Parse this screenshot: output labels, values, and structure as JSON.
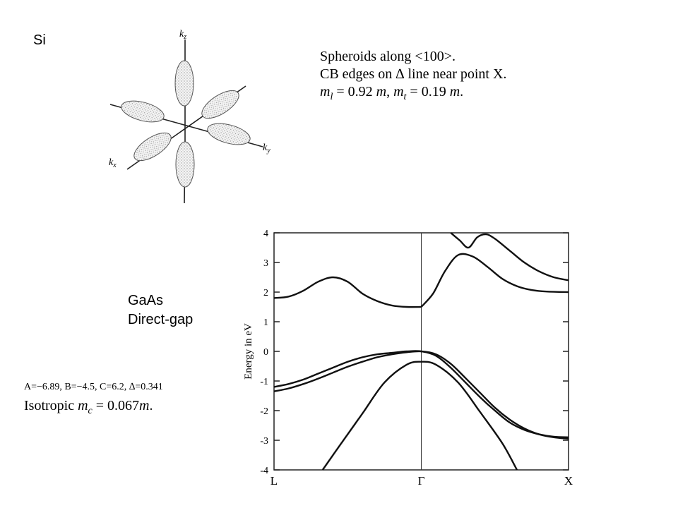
{
  "si": {
    "label": "Si",
    "line1": "Spheroids along <100>.",
    "line2": "CB edges on ∆ line near point X.",
    "line3": {
      "m": "m",
      "sub_l": "l",
      "eq1": " = 0.92 ",
      "m2": "m",
      "sep": ",  ",
      "m3": "m",
      "sub_t": "t",
      "eq2": " = 0.19 ",
      "m4": "m",
      "end": "."
    },
    "axes": {
      "kz": "k",
      "kz_sub": "z",
      "ky": "k",
      "ky_sub": "y",
      "kx": "k",
      "kx_sub": "x"
    }
  },
  "gaas": {
    "label1": "GaAs",
    "label2": "Direct-gap",
    "params": "A=−6.89,  B=−4.5, C=6.2,  ∆=0.341",
    "iso": {
      "pre": "Isotropic ",
      "m": "m",
      "sub": "c",
      "eq": " = 0.067",
      "m2": "m",
      "end": "."
    }
  },
  "chart_data": {
    "type": "line",
    "title": "",
    "xlabel": "",
    "ylabel": "Energy in eV",
    "x_ticks": [
      "L",
      "Γ",
      "X"
    ],
    "ylim": [
      -4,
      4
    ],
    "y_ticks": [
      "4",
      "3",
      "2",
      "1",
      "0",
      "-1",
      "-2",
      "-3",
      "-4"
    ],
    "grid": false,
    "legend": "none",
    "series": [
      {
        "x": [
          0,
          0.1,
          0.2,
          0.3,
          0.4,
          0.5,
          0.6,
          0.7,
          0.8,
          0.9,
          1.0
        ],
        "y": [
          1.8,
          1.85,
          2.05,
          2.35,
          2.5,
          2.35,
          1.95,
          1.7,
          1.55,
          1.5,
          1.5
        ]
      },
      {
        "x": [
          1.0,
          1.08,
          1.16,
          1.25,
          1.35,
          1.45,
          1.55,
          1.65,
          1.75,
          1.85,
          2.0
        ],
        "y": [
          1.5,
          1.95,
          2.7,
          3.25,
          3.2,
          2.85,
          2.45,
          2.2,
          2.07,
          2.02,
          2.0
        ]
      },
      {
        "x": [
          1.2,
          1.26,
          1.32,
          1.38,
          1.44,
          1.5,
          1.6,
          1.7,
          1.8,
          1.9,
          2.0
        ],
        "y": [
          4.0,
          3.75,
          3.5,
          3.85,
          3.95,
          3.8,
          3.4,
          3.0,
          2.7,
          2.5,
          2.4
        ]
      },
      {
        "x": [
          0,
          0.1,
          0.2,
          0.3,
          0.4,
          0.5,
          0.6,
          0.7,
          0.8,
          0.9,
          1.0,
          1.1,
          1.2,
          1.3,
          1.4,
          1.5,
          1.6,
          1.7,
          1.8,
          1.9,
          2.0
        ],
        "y": [
          -1.2,
          -1.1,
          -0.95,
          -0.75,
          -0.55,
          -0.35,
          -0.2,
          -0.1,
          -0.05,
          0.0,
          0.0,
          -0.15,
          -0.55,
          -1.05,
          -1.55,
          -2.0,
          -2.4,
          -2.65,
          -2.8,
          -2.88,
          -2.9
        ]
      },
      {
        "x": [
          0,
          0.1,
          0.2,
          0.3,
          0.4,
          0.5,
          0.6,
          0.7,
          0.8,
          0.9,
          1.0,
          1.1,
          1.2,
          1.3,
          1.4,
          1.5,
          1.6,
          1.7,
          1.8,
          1.9,
          2.0
        ],
        "y": [
          -1.35,
          -1.25,
          -1.1,
          -0.92,
          -0.72,
          -0.52,
          -0.35,
          -0.2,
          -0.1,
          -0.03,
          0.0,
          -0.1,
          -0.42,
          -0.9,
          -1.4,
          -1.9,
          -2.3,
          -2.6,
          -2.8,
          -2.9,
          -2.95
        ]
      },
      {
        "x": [
          0.33,
          0.45,
          0.6,
          0.75,
          0.9,
          1.0,
          1.1,
          1.25,
          1.4,
          1.55,
          1.65
        ],
        "y": [
          -4.0,
          -3.15,
          -2.1,
          -1.05,
          -0.45,
          -0.35,
          -0.45,
          -1.05,
          -2.05,
          -3.1,
          -4.0
        ]
      }
    ]
  }
}
